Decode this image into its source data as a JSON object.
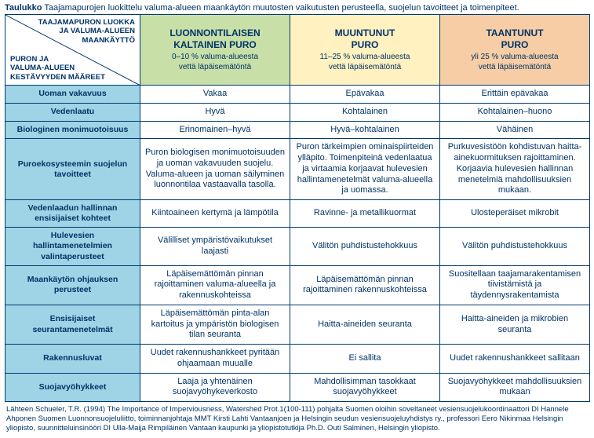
{
  "title_prefix": "Taulukko",
  "title_text": " Taajamapurojen luokittelu valuma-alueen maankäytön muutosten vaikutusten perusteella, suojelun tavoitteet ja toimenpiteet.",
  "diag": {
    "top_right_lines": [
      "TAAJAMAPURON LUOKKA",
      "JA VALUMA-ALUEEN",
      "MAANKÄYTTÖ"
    ],
    "bottom_left_lines": [
      "PURON JA",
      "VALUMA-ALUEEN",
      "KESTÄVYYDEN MÄÄREET"
    ]
  },
  "headers": [
    {
      "l1": "LUONNONTILAISEN",
      "l2": "KALTAINEN PURO",
      "l3t": "0–10 % valuma-alueesta",
      "l3b": "vettä läpäisemätöntä",
      "bg": "#c8e0a8"
    },
    {
      "l1": "MUUNTUNUT",
      "l2": "PURO",
      "l3t": "11–25 % valuma-alueesta",
      "l3b": "vettä läpäisemätöntä",
      "bg": "#fff1c0"
    },
    {
      "l1": "TAANTUNUT",
      "l2": "PURO",
      "l3t": "yli 25 % valuma-alueesta",
      "l3b": "vettä läpäisemätöntä",
      "bg": "#f7cda5"
    }
  ],
  "rows": [
    {
      "h": "Uoman vakavuus",
      "c": [
        "Vakaa",
        "Epävakaa",
        "Erittäin epävakaa"
      ]
    },
    {
      "h": "Vedenlaatu",
      "c": [
        "Hyvä",
        "Kohtalainen",
        "Kohtalainen–huono"
      ]
    },
    {
      "h": "Biologinen monimuotoisuus",
      "c": [
        "Erinomainen–hyvä",
        "Hyvä–kohtalainen",
        "Vähäinen"
      ]
    },
    {
      "h": "Puroekosysteemin suojelun tavoitteet",
      "c": [
        "Puron biologisen monimuotoisuuden ja uoman vakavuuden suojelu. Valuma-alueen ja uoman säilyminen luonnontilaa vastaavalla tasolla.",
        "Puron tärkeimpien ominaispiirteiden ylläpito. Toimenpiteinä vedenlaatua ja virtaamia korjaavat hulevesien hallintamenetelmät valuma-alueella ja uomassa.",
        "Purkuvesistöön kohdistuvan haitta-ainekuormituksen rajoittaminen. Korjaavia hulevesien hallinnan menetelmiä mahdollisuuksien mukaan."
      ]
    },
    {
      "h": "Vedenlaadun hallinnan ensisijaiset kohteet",
      "c": [
        "Kiintoaineen kertymä ja lämpötila",
        "Ravinne- ja metallikuormat",
        "Ulosteperäiset mikrobit"
      ]
    },
    {
      "h": "Hulevesien hallintamenetelmien valintaperusteet",
      "c": [
        "Välilliset ympäristövaikutukset laajasti",
        "Välitön puhdistustehokkuus",
        "Välitön puhdistustehokkuus"
      ]
    },
    {
      "h": "Maankäytön ohjauksen perusteet",
      "c": [
        "Läpäisemättömän pinnan rajoittaminen valuma-alueella ja rakennuskohteissa",
        "Läpäisemättömän pinnan rajoittaminen rakennuskohteissa",
        "Suositellaan taajamarakentamisen tiivistämistä ja täydennysrakentamista"
      ]
    },
    {
      "h": "Ensisijaiset seurantamenetelmät",
      "c": [
        "Läpäisemättömän pinta-alan kartoitus ja ympäristön biologisen tilan seuranta",
        "Haitta-aineiden seuranta",
        "Haitta-aineiden ja mikrobien seuranta"
      ]
    },
    {
      "h": "Rakennusluvat",
      "c": [
        "Uudet rakennushankkeet pyritään ohjaamaan muualle",
        "Ei sallita",
        "Uudet rakennushankkeet sallitaan"
      ]
    },
    {
      "h": "Suojavyöhykkeet",
      "c": [
        "Laaja ja yhtenäinen suojavyöhykeverkosto",
        "Mahdollisimman tasokkaat suojavyöhykkeet",
        "Suojavyöhykkeet mahdollisuuksien mukaan"
      ]
    }
  ],
  "source": "Lähteen Schueler, T.R. (1994) The Importance of Imperviousness, Watershed Prot.1(100-111) pohjalta Suomen oloihin soveltaneet vesiensuojelukoordinaattori DI Hannele Ahponen Suomen Luonnonsuojeluliitto, toiminnanjohtaja MMT Kirsti Lahti Vantaanjoen ja Helsingin seudun vesiensuojeluyhdistys ry., professori Eero Nikinmaa Helsingin yliopisto, suunnitteluinsinööri DI Ulla-Maija Rimpiläinen Vantaan kaupunki ja yliopistotutkija Ph.D. Outi Salminen, Helsingin yliopisto.",
  "colors": {
    "border": "#003a6f",
    "rowhead_bg": "#9fd3e6",
    "text": "#003366"
  }
}
